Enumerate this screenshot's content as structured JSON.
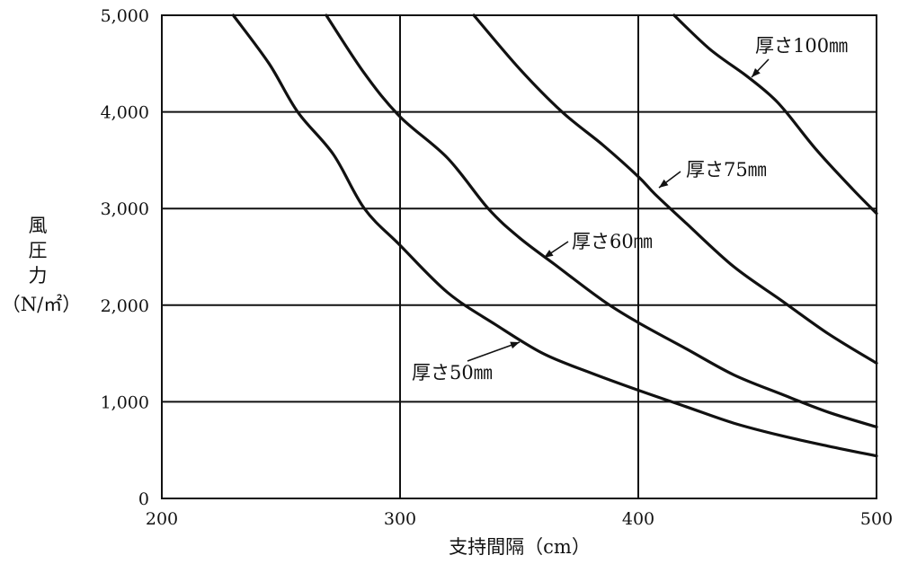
{
  "chart_data": {
    "type": "line",
    "xlabel": "支持間隔（cm）",
    "ylabel": [
      "風",
      "圧",
      "力",
      "（N/㎡）"
    ],
    "xlim": [
      200,
      500
    ],
    "ylim": [
      0,
      5000
    ],
    "x_ticks": [
      200,
      300,
      400,
      500
    ],
    "x_tick_labels": [
      "200",
      "300",
      "400",
      "500"
    ],
    "y_ticks": [
      0,
      1000,
      2000,
      3000,
      4000,
      5000
    ],
    "y_tick_labels": [
      "0",
      "1,000",
      "2,000",
      "3,000",
      "4,000",
      "5,000"
    ],
    "grid": true,
    "series": [
      {
        "name": "厚さ50㎜",
        "x": [
          230,
          245,
          257,
          272,
          285,
          300,
          320,
          340,
          360,
          380,
          400,
          420,
          440,
          460,
          480,
          500
        ],
        "y": [
          5000,
          4500,
          4000,
          3560,
          3000,
          2620,
          2130,
          1800,
          1500,
          1300,
          1120,
          950,
          780,
          650,
          540,
          440
        ]
      },
      {
        "name": "厚さ60㎜",
        "x": [
          269,
          285,
          300,
          320,
          337,
          350,
          365,
          385,
          400,
          420,
          440,
          460,
          480,
          500
        ],
        "y": [
          5000,
          4400,
          3950,
          3520,
          3000,
          2700,
          2420,
          2050,
          1820,
          1550,
          1280,
          1080,
          890,
          740
        ]
      },
      {
        "name": "厚さ75㎜",
        "x": [
          331,
          350,
          368,
          385,
          400,
          407,
          420,
          440,
          460,
          480,
          500
        ],
        "y": [
          5000,
          4450,
          4000,
          3660,
          3330,
          3150,
          2850,
          2400,
          2050,
          1700,
          1400
        ]
      },
      {
        "name": "厚さ100㎜",
        "x": [
          415,
          430,
          445,
          455,
          462,
          475,
          490,
          500
        ],
        "y": [
          5000,
          4650,
          4380,
          4180,
          4000,
          3600,
          3200,
          2950
        ]
      }
    ]
  }
}
